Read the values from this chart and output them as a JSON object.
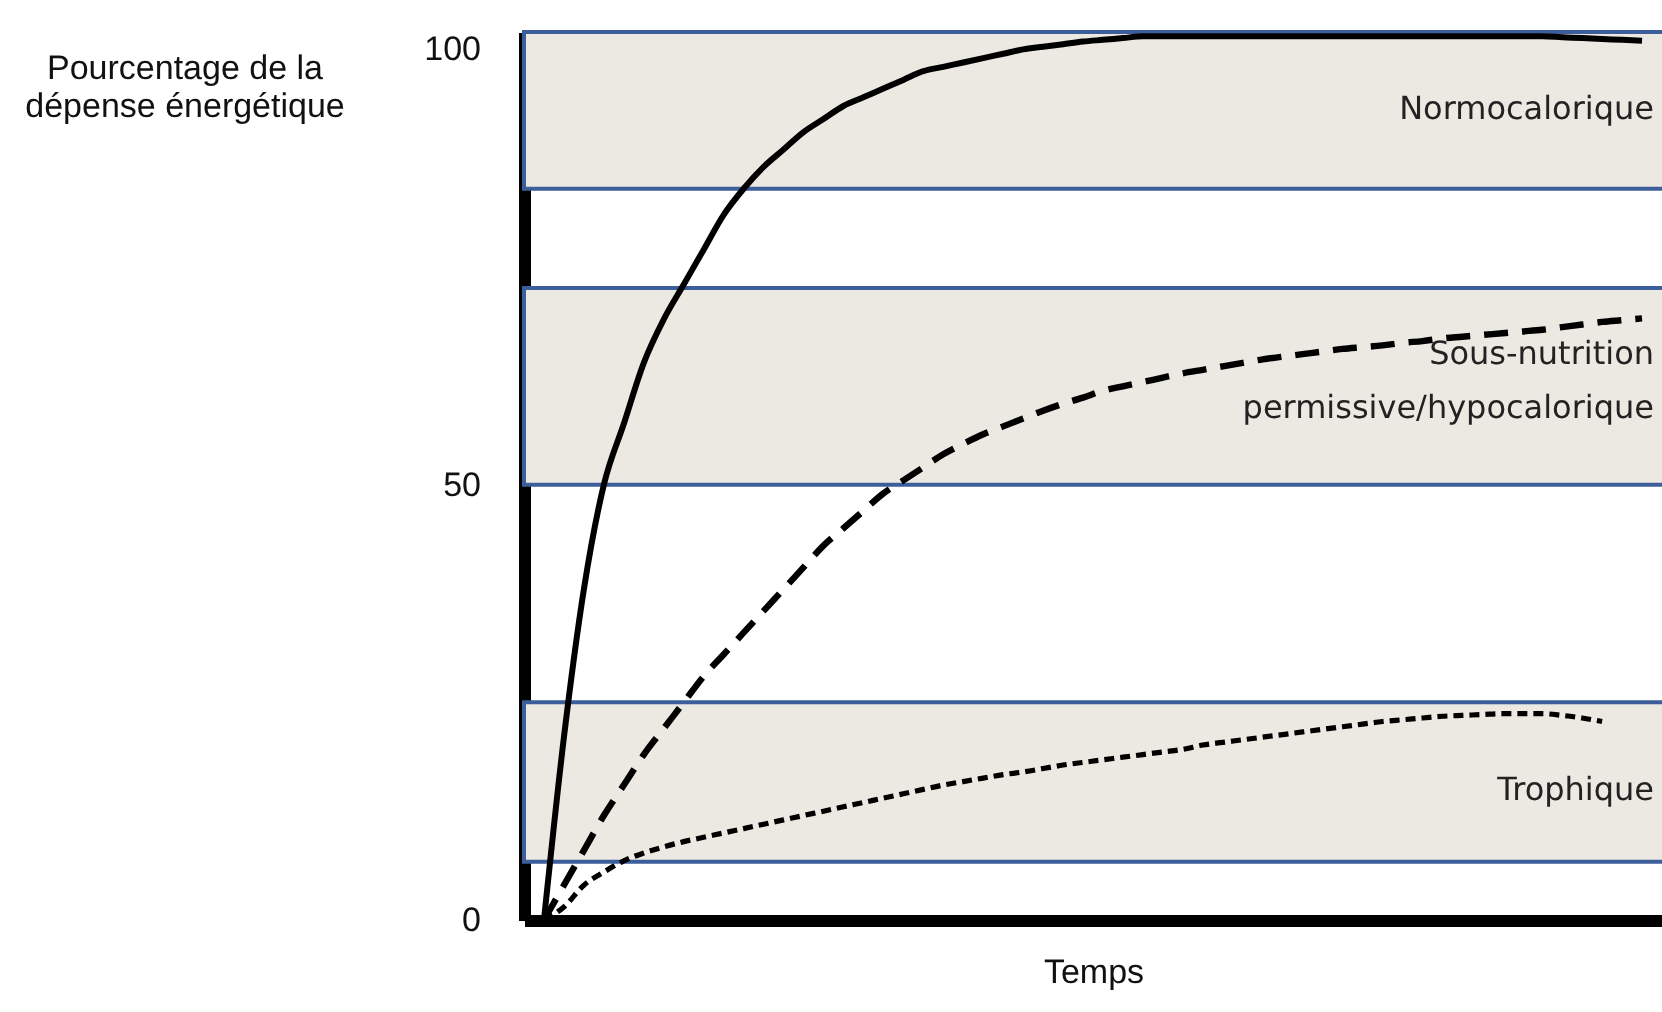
{
  "chart_data": {
    "type": "line",
    "ylabel": "Pourcentage de la dépense énergétique",
    "xlabel": "Temps",
    "categories": [
      null,
      null,
      null,
      null,
      null,
      null,
      null,
      null,
      null,
      null,
      null,
      null,
      null,
      null,
      null,
      null,
      null,
      null,
      null,
      null,
      null,
      null,
      null,
      null,
      null,
      null,
      null,
      null,
      null,
      null,
      null,
      null,
      null,
      null,
      null,
      null,
      null,
      null,
      null,
      null,
      null,
      null,
      null,
      null,
      null,
      null,
      null,
      null,
      null,
      null,
      null,
      null,
      null,
      null,
      null,
      null
    ],
    "series": [
      {
        "name": "Normocalorique",
        "color": "#000000",
        "line_style": "solid",
        "values": [
          0,
          21,
          38,
          50,
          57,
          64,
          69,
          73,
          77,
          81,
          84,
          86.5,
          88.5,
          90.5,
          92,
          93.5,
          94.5,
          95.5,
          96.5,
          97.5,
          98,
          98.5,
          99,
          99.5,
          100,
          100.3,
          100.6,
          100.9,
          101.1,
          101.3,
          101.5,
          101.5,
          101.5,
          101.5,
          101.5,
          101.5,
          101.5,
          101.5,
          101.5,
          101.5,
          101.5,
          101.5,
          101.5,
          101.5,
          101.5,
          101.5,
          101.5,
          101.5,
          101.5,
          101.5,
          101.5,
          101.4,
          101.3,
          101.2,
          101.1,
          101
        ]
      },
      {
        "name": "Sous-nutrition permissive/hypocalorique",
        "color": "#000000",
        "line_style": "dashed",
        "values": [
          0,
          4,
          8,
          12,
          15.5,
          19,
          22,
          25,
          28,
          30.5,
          33,
          35.5,
          38,
          40.5,
          43,
          45,
          47,
          49,
          50.5,
          52,
          53.5,
          54.7,
          55.8,
          56.7,
          57.6,
          58.5,
          59.3,
          60,
          60.8,
          61.3,
          61.8,
          62.3,
          62.8,
          63.2,
          63.6,
          64,
          64.4,
          64.7,
          65,
          65.3,
          65.6,
          65.8,
          66,
          66.3,
          66.5,
          66.8,
          67,
          67.2,
          67.4,
          67.6,
          67.8,
          68.1,
          68.4,
          68.7,
          68.9,
          69.1
        ]
      },
      {
        "name": "Trophique",
        "color": "#000000",
        "line_style": "dotted",
        "values": [
          0,
          1.5,
          4,
          5.5,
          6.8,
          7.7,
          8.4,
          9,
          9.5,
          10,
          10.5,
          11,
          11.5,
          12,
          12.5,
          13,
          13.5,
          14,
          14.5,
          15,
          15.5,
          15.9,
          16.3,
          16.7,
          17,
          17.4,
          17.8,
          18.1,
          18.4,
          18.7,
          19,
          19.3,
          19.6,
          20.1,
          20.4,
          20.7,
          21,
          21.3,
          21.6,
          21.9,
          22.2,
          22.5,
          22.8,
          23,
          23.2,
          23.4,
          23.5,
          23.6,
          23.7,
          23.7,
          23.7,
          23.5,
          23.2,
          22.8,
          null,
          null
        ]
      }
    ],
    "bands": [
      {
        "axis": "y",
        "from": 84,
        "to": 102,
        "color": "#ebe9e1"
      },
      {
        "axis": "y",
        "from": 50,
        "to": 72.6,
        "color": "#ebe9e1"
      },
      {
        "axis": "y",
        "from": 6.7,
        "to": 25,
        "color": "#ebe9e1"
      }
    ],
    "ylim": [
      0,
      102
    ],
    "yticks": [
      0,
      50,
      100
    ],
    "grid": false,
    "tick_labels": "y"
  }
}
